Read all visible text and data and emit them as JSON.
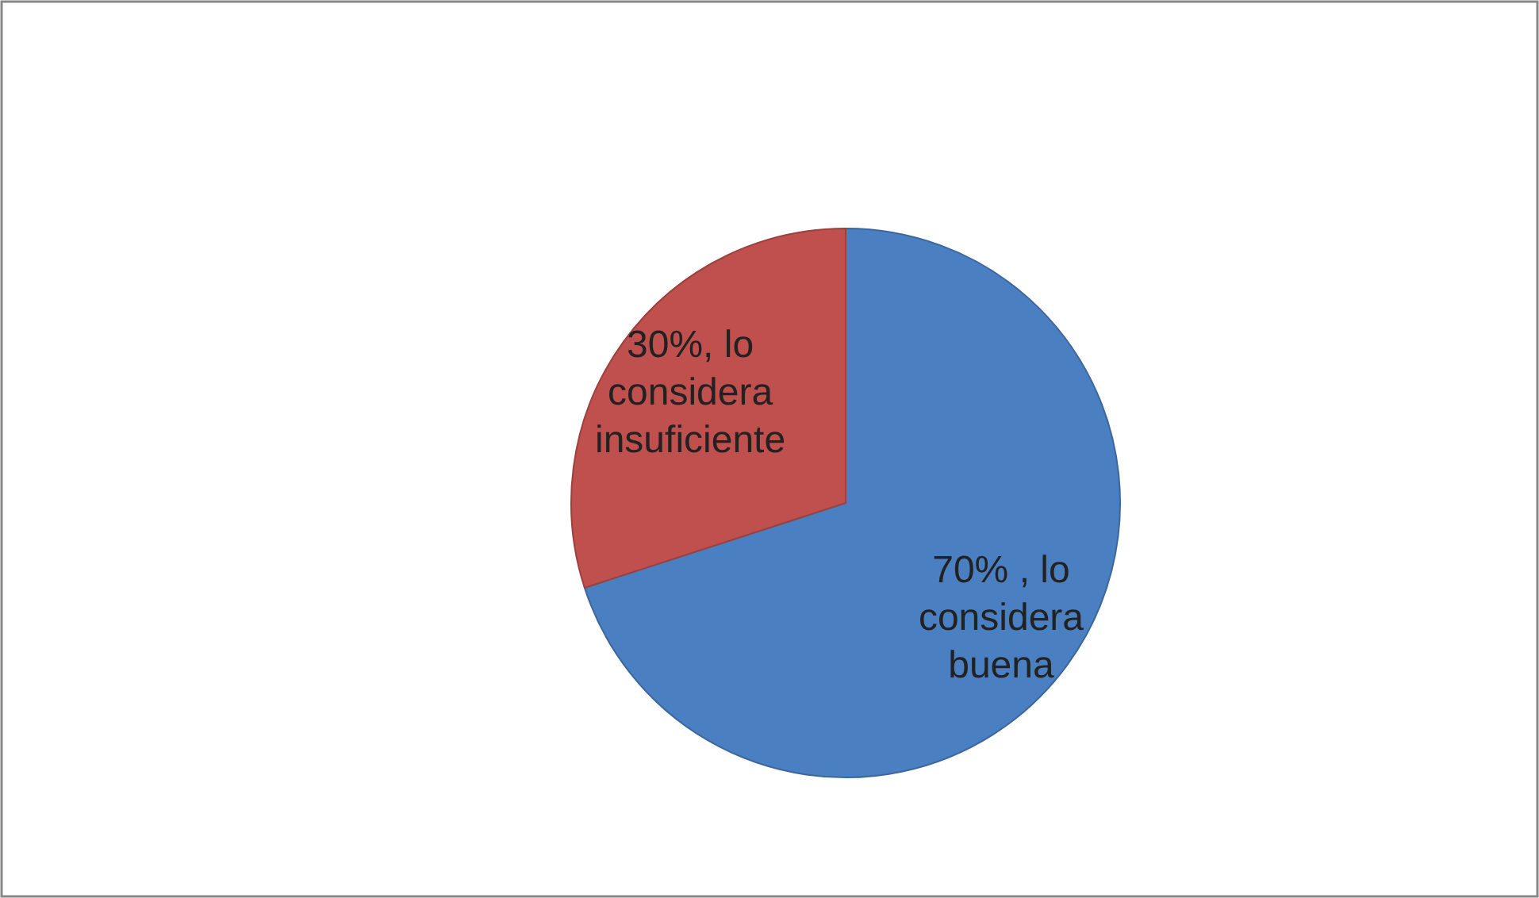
{
  "chart_data": {
    "type": "pie",
    "categories": [
      "lo considera buena",
      "lo considera insuficiente"
    ],
    "values": [
      70,
      30
    ],
    "colors": [
      "#4a7fc1",
      "#c0504d"
    ],
    "value_labels": [
      "70% ,",
      "30%,"
    ],
    "legend": false
  }
}
